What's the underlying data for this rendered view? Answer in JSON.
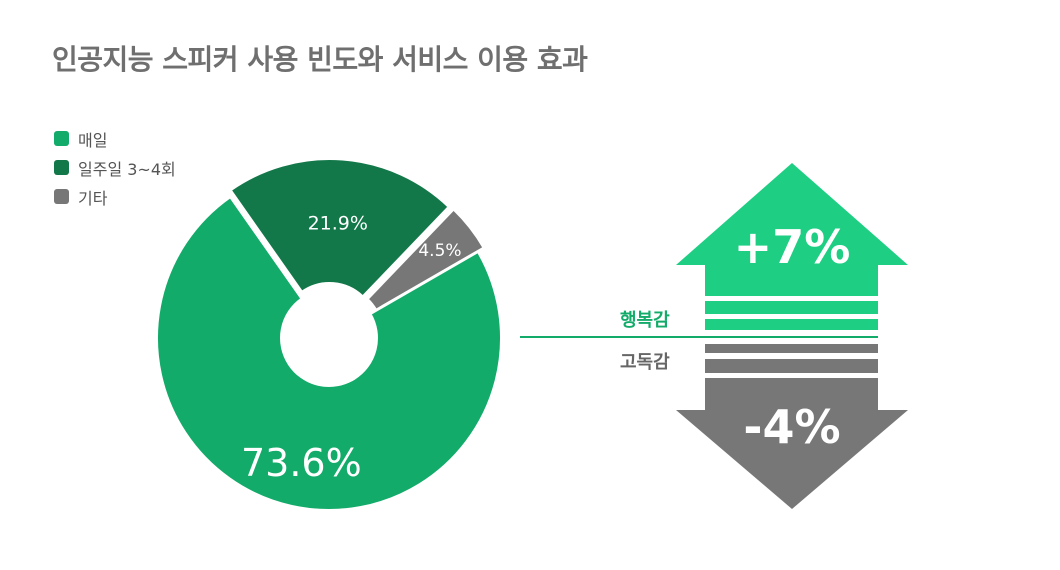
{
  "title": "인공지능 스피커 사용 빈도와 서비스 이용 효과",
  "colors": {
    "daily": "#13ab6a",
    "weekly": "#137849",
    "other": "#777777",
    "up": "#1dce83",
    "down": "#777777",
    "connector": "#13ab6a"
  },
  "chart_data": [
    {
      "type": "pie",
      "subtype": "donut",
      "legend_position": "top-left",
      "slices": [
        {
          "label": "매일",
          "value": 73.6,
          "display": "73.6%"
        },
        {
          "label": "일주일 3~4회",
          "value": 21.9,
          "display": "21.9%"
        },
        {
          "label": "기타",
          "value": 4.5,
          "display": "4.5%"
        }
      ]
    },
    {
      "type": "bar",
      "subtype": "up-down-arrows",
      "categories": [
        "행복감",
        "고독감"
      ],
      "values": [
        7,
        -4
      ],
      "unit": "%",
      "display": [
        "+7%",
        "-4%"
      ]
    }
  ]
}
